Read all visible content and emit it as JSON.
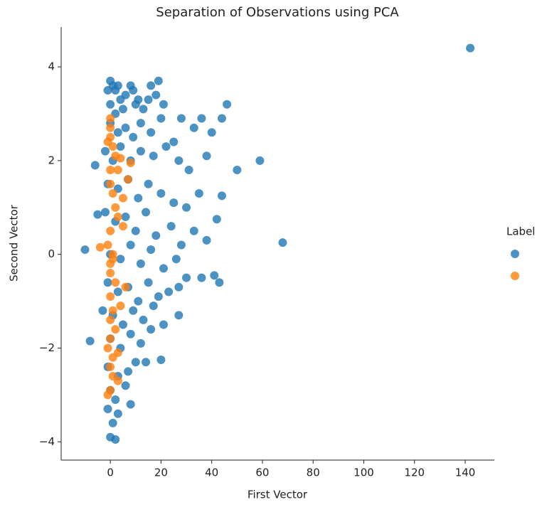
{
  "chart_data": {
    "type": "scatter",
    "title": "Separation of Observations using PCA",
    "x_label": "First Vector",
    "y_label": "Second Vector",
    "legend_title": "Label",
    "legend": "right",
    "xlim": [
      -19.4,
      151.5
    ],
    "ylim": [
      -4.39,
      4.85
    ],
    "xticks": [
      0,
      20,
      40,
      60,
      80,
      100,
      120,
      140
    ],
    "yticks": [
      {
        "value": -4,
        "label": "−4"
      },
      {
        "value": -2,
        "label": "−2"
      },
      0,
      2,
      4
    ],
    "series": [
      {
        "color": "#1f77b4",
        "x": [
          0,
          1,
          2,
          3,
          -1,
          4,
          0,
          2,
          5,
          6,
          8,
          9,
          10,
          11,
          13,
          16,
          15,
          19,
          18,
          21,
          0,
          3,
          6,
          9,
          12,
          16,
          20,
          25,
          28,
          33,
          -2,
          1,
          4,
          8,
          12,
          17,
          22,
          27,
          31,
          38,
          -1,
          3,
          7,
          11,
          15,
          20,
          25,
          30,
          35,
          -2,
          2,
          6,
          10,
          14,
          18,
          24,
          28,
          33,
          38,
          0,
          4,
          8,
          12,
          16,
          21,
          26,
          30,
          36,
          -1,
          3,
          7,
          11,
          15,
          19,
          23,
          27,
          -3,
          1,
          5,
          9,
          13,
          17,
          21,
          27,
          0,
          4,
          8,
          12,
          16,
          20,
          14,
          -1,
          3,
          7,
          10,
          0,
          2,
          6,
          8,
          -1,
          1,
          3,
          0,
          2,
          142,
          68,
          59,
          50,
          46,
          -10,
          -8,
          -6,
          -5,
          44,
          42,
          43,
          41,
          36,
          40,
          44
        ],
        "values": [
          3.7,
          3.6,
          3.5,
          3.6,
          3.5,
          3.3,
          3.2,
          3.0,
          3.1,
          3.4,
          3.6,
          3.5,
          3.2,
          3.3,
          3.1,
          3.6,
          3.3,
          3.7,
          3.4,
          3.2,
          2.8,
          2.6,
          2.7,
          2.5,
          2.8,
          2.6,
          2.9,
          2.4,
          2.9,
          2.7,
          2.2,
          2.0,
          2.3,
          2.0,
          2.2,
          2.1,
          2.3,
          2.0,
          1.8,
          2.1,
          1.5,
          1.4,
          1.6,
          1.2,
          1.5,
          1.3,
          1.1,
          1.0,
          1.3,
          0.9,
          0.7,
          0.8,
          0.5,
          0.9,
          0.4,
          0.6,
          0.2,
          0.5,
          0.3,
          0.0,
          -0.1,
          0.2,
          -0.2,
          0.1,
          -0.3,
          -0.1,
          -0.5,
          -0.5,
          -0.6,
          -0.8,
          -0.7,
          -1.0,
          -0.6,
          -0.9,
          -0.8,
          -0.7,
          -1.2,
          -1.3,
          -1.5,
          -1.2,
          -1.4,
          -1.1,
          -1.5,
          -1.3,
          -1.8,
          -2.0,
          -1.7,
          -1.9,
          -1.6,
          -2.25,
          -2.3,
          -2.4,
          -2.6,
          -2.5,
          -2.3,
          -2.9,
          -3.1,
          -2.8,
          -3.2,
          -3.3,
          -3.6,
          -3.4,
          -3.9,
          -3.95,
          4.4,
          0.25,
          2,
          1.8,
          3.2,
          0.1,
          -1.85,
          1.9,
          0.85,
          1.25,
          0.75,
          -0.6,
          -0.45,
          2.9,
          2.6,
          2.9
        ]
      },
      {
        "color": "#ff7f0e",
        "x": [
          0,
          0,
          0,
          -1,
          1,
          2,
          4,
          8,
          7,
          0,
          1,
          2,
          3,
          5,
          0,
          -4,
          -1,
          1,
          0,
          2,
          6,
          0,
          1,
          4,
          0,
          2,
          0,
          -1,
          1,
          3,
          0,
          1,
          3,
          0,
          -1,
          0,
          1,
          0,
          3,
          5
        ],
        "values": [
          2.9,
          2.7,
          2.5,
          2.4,
          2.3,
          2.1,
          2.05,
          1.95,
          1.6,
          1.5,
          1.3,
          1.0,
          0.8,
          0.6,
          0.5,
          0.15,
          0.2,
          -0.1,
          -0.4,
          -0.6,
          -0.7,
          -0.9,
          -1.2,
          -1.1,
          -1.4,
          -1.6,
          -1.8,
          -2.0,
          -2.2,
          -2.1,
          -2.4,
          -2.6,
          -2.7,
          -2.9,
          -3.0,
          1.8,
          0.0,
          -0.2,
          1.8,
          1.2
        ]
      }
    ]
  }
}
